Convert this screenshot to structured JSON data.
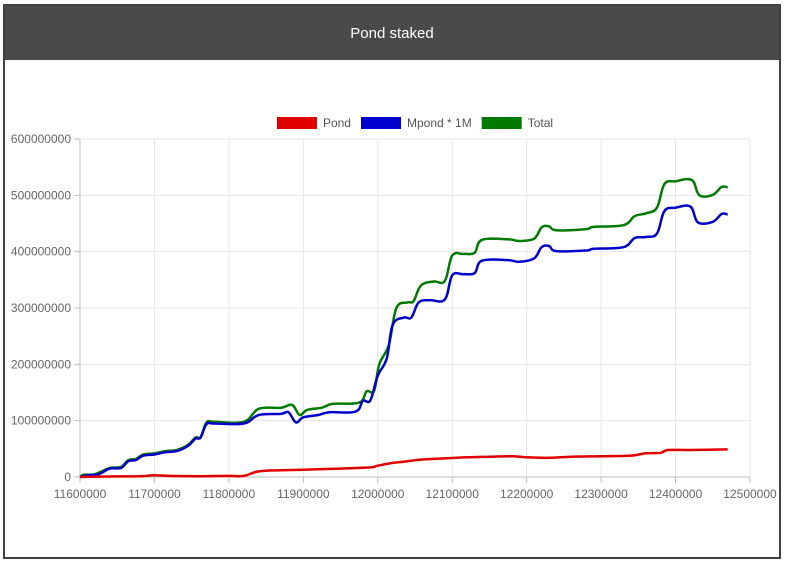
{
  "header": {
    "title": "Pond staked"
  },
  "chart_data": {
    "type": "line",
    "title": "Pond staked",
    "xlabel": "",
    "ylabel": "",
    "xlim": [
      11600000,
      12500000
    ],
    "ylim": [
      0,
      600000000
    ],
    "x_ticks": [
      "11600000",
      "11700000",
      "11800000",
      "11900000",
      "12000000",
      "12100000",
      "12200000",
      "12300000",
      "12400000",
      "12500000"
    ],
    "y_ticks": [
      "0",
      "100000000",
      "200000000",
      "300000000",
      "400000000",
      "500000000",
      "600000000"
    ],
    "grid": true,
    "legend_position": "top",
    "series": [
      {
        "name": "Pond",
        "color": "#e00000",
        "points": [
          [
            11600000,
            0
          ],
          [
            11650000,
            1000000
          ],
          [
            11680000,
            1500000
          ],
          [
            11700000,
            3000000
          ],
          [
            11720000,
            2000000
          ],
          [
            11760000,
            1500000
          ],
          [
            11800000,
            2000000
          ],
          [
            11820000,
            2000000
          ],
          [
            11840000,
            10000000
          ],
          [
            11870000,
            12000000
          ],
          [
            11900000,
            13000000
          ],
          [
            11950000,
            15000000
          ],
          [
            11990000,
            17000000
          ],
          [
            12000000,
            20000000
          ],
          [
            12020000,
            25000000
          ],
          [
            12040000,
            28000000
          ],
          [
            12060000,
            31000000
          ],
          [
            12090000,
            33000000
          ],
          [
            12120000,
            35000000
          ],
          [
            12150000,
            36000000
          ],
          [
            12180000,
            37000000
          ],
          [
            12200000,
            35000000
          ],
          [
            12230000,
            34000000
          ],
          [
            12260000,
            36000000
          ],
          [
            12300000,
            37000000
          ],
          [
            12340000,
            38000000
          ],
          [
            12360000,
            42000000
          ],
          [
            12380000,
            43000000
          ],
          [
            12390000,
            48000000
          ],
          [
            12420000,
            48000000
          ],
          [
            12470000,
            49000000
          ]
        ]
      },
      {
        "name": "Mpond * 1M",
        "color": "#0000cc",
        "points": [
          [
            11600000,
            0
          ],
          [
            11610000,
            3000000
          ],
          [
            11625000,
            5000000
          ],
          [
            11640000,
            15000000
          ],
          [
            11655000,
            16000000
          ],
          [
            11665000,
            28000000
          ],
          [
            11675000,
            30000000
          ],
          [
            11685000,
            38000000
          ],
          [
            11700000,
            40000000
          ],
          [
            11715000,
            44000000
          ],
          [
            11730000,
            46000000
          ],
          [
            11745000,
            55000000
          ],
          [
            11755000,
            68000000
          ],
          [
            11762000,
            70000000
          ],
          [
            11770000,
            94000000
          ],
          [
            11780000,
            95000000
          ],
          [
            11820000,
            95000000
          ],
          [
            11840000,
            110000000
          ],
          [
            11870000,
            112000000
          ],
          [
            11880000,
            115000000
          ],
          [
            11890000,
            97000000
          ],
          [
            11900000,
            106000000
          ],
          [
            11920000,
            110000000
          ],
          [
            11935000,
            115000000
          ],
          [
            11970000,
            116000000
          ],
          [
            11980000,
            135000000
          ],
          [
            11990000,
            136000000
          ],
          [
            12000000,
            180000000
          ],
          [
            12012000,
            210000000
          ],
          [
            12020000,
            270000000
          ],
          [
            12035000,
            283000000
          ],
          [
            12045000,
            283000000
          ],
          [
            12055000,
            310000000
          ],
          [
            12070000,
            314000000
          ],
          [
            12090000,
            315000000
          ],
          [
            12100000,
            358000000
          ],
          [
            12115000,
            360000000
          ],
          [
            12130000,
            362000000
          ],
          [
            12140000,
            384000000
          ],
          [
            12175000,
            385000000
          ],
          [
            12190000,
            382000000
          ],
          [
            12210000,
            388000000
          ],
          [
            12220000,
            408000000
          ],
          [
            12230000,
            410000000
          ],
          [
            12240000,
            401000000
          ],
          [
            12280000,
            402000000
          ],
          [
            12290000,
            405000000
          ],
          [
            12330000,
            408000000
          ],
          [
            12345000,
            424000000
          ],
          [
            12360000,
            426000000
          ],
          [
            12375000,
            432000000
          ],
          [
            12385000,
            472000000
          ],
          [
            12400000,
            478000000
          ],
          [
            12420000,
            480000000
          ],
          [
            12430000,
            452000000
          ],
          [
            12450000,
            453000000
          ],
          [
            12462000,
            467000000
          ],
          [
            12470000,
            466000000
          ]
        ]
      },
      {
        "name": "Total",
        "color": "#007a00",
        "points": [
          [
            11600000,
            0
          ],
          [
            11605000,
            4000000
          ],
          [
            11620000,
            5000000
          ],
          [
            11640000,
            16000000
          ],
          [
            11655000,
            18000000
          ],
          [
            11665000,
            30000000
          ],
          [
            11675000,
            32000000
          ],
          [
            11685000,
            40000000
          ],
          [
            11700000,
            42000000
          ],
          [
            11715000,
            46000000
          ],
          [
            11730000,
            48000000
          ],
          [
            11745000,
            57000000
          ],
          [
            11755000,
            70000000
          ],
          [
            11762000,
            71000000
          ],
          [
            11770000,
            97000000
          ],
          [
            11780000,
            98000000
          ],
          [
            11820000,
            98000000
          ],
          [
            11840000,
            121000000
          ],
          [
            11870000,
            123000000
          ],
          [
            11885000,
            128000000
          ],
          [
            11895000,
            110000000
          ],
          [
            11905000,
            119000000
          ],
          [
            11925000,
            123000000
          ],
          [
            11940000,
            130000000
          ],
          [
            11975000,
            132000000
          ],
          [
            11985000,
            152000000
          ],
          [
            11995000,
            153000000
          ],
          [
            12002000,
            200000000
          ],
          [
            12015000,
            235000000
          ],
          [
            12025000,
            300000000
          ],
          [
            12040000,
            310000000
          ],
          [
            12048000,
            312000000
          ],
          [
            12058000,
            340000000
          ],
          [
            12075000,
            347000000
          ],
          [
            12090000,
            348000000
          ],
          [
            12100000,
            393000000
          ],
          [
            12115000,
            396000000
          ],
          [
            12130000,
            398000000
          ],
          [
            12140000,
            421000000
          ],
          [
            12175000,
            422000000
          ],
          [
            12190000,
            419000000
          ],
          [
            12210000,
            423000000
          ],
          [
            12220000,
            443000000
          ],
          [
            12230000,
            445000000
          ],
          [
            12240000,
            438000000
          ],
          [
            12280000,
            440000000
          ],
          [
            12290000,
            444000000
          ],
          [
            12330000,
            447000000
          ],
          [
            12345000,
            463000000
          ],
          [
            12360000,
            468000000
          ],
          [
            12375000,
            478000000
          ],
          [
            12385000,
            520000000
          ],
          [
            12400000,
            525000000
          ],
          [
            12422000,
            527000000
          ],
          [
            12432000,
            500000000
          ],
          [
            12450000,
            501000000
          ],
          [
            12462000,
            515000000
          ],
          [
            12470000,
            514000000
          ]
        ]
      }
    ]
  }
}
